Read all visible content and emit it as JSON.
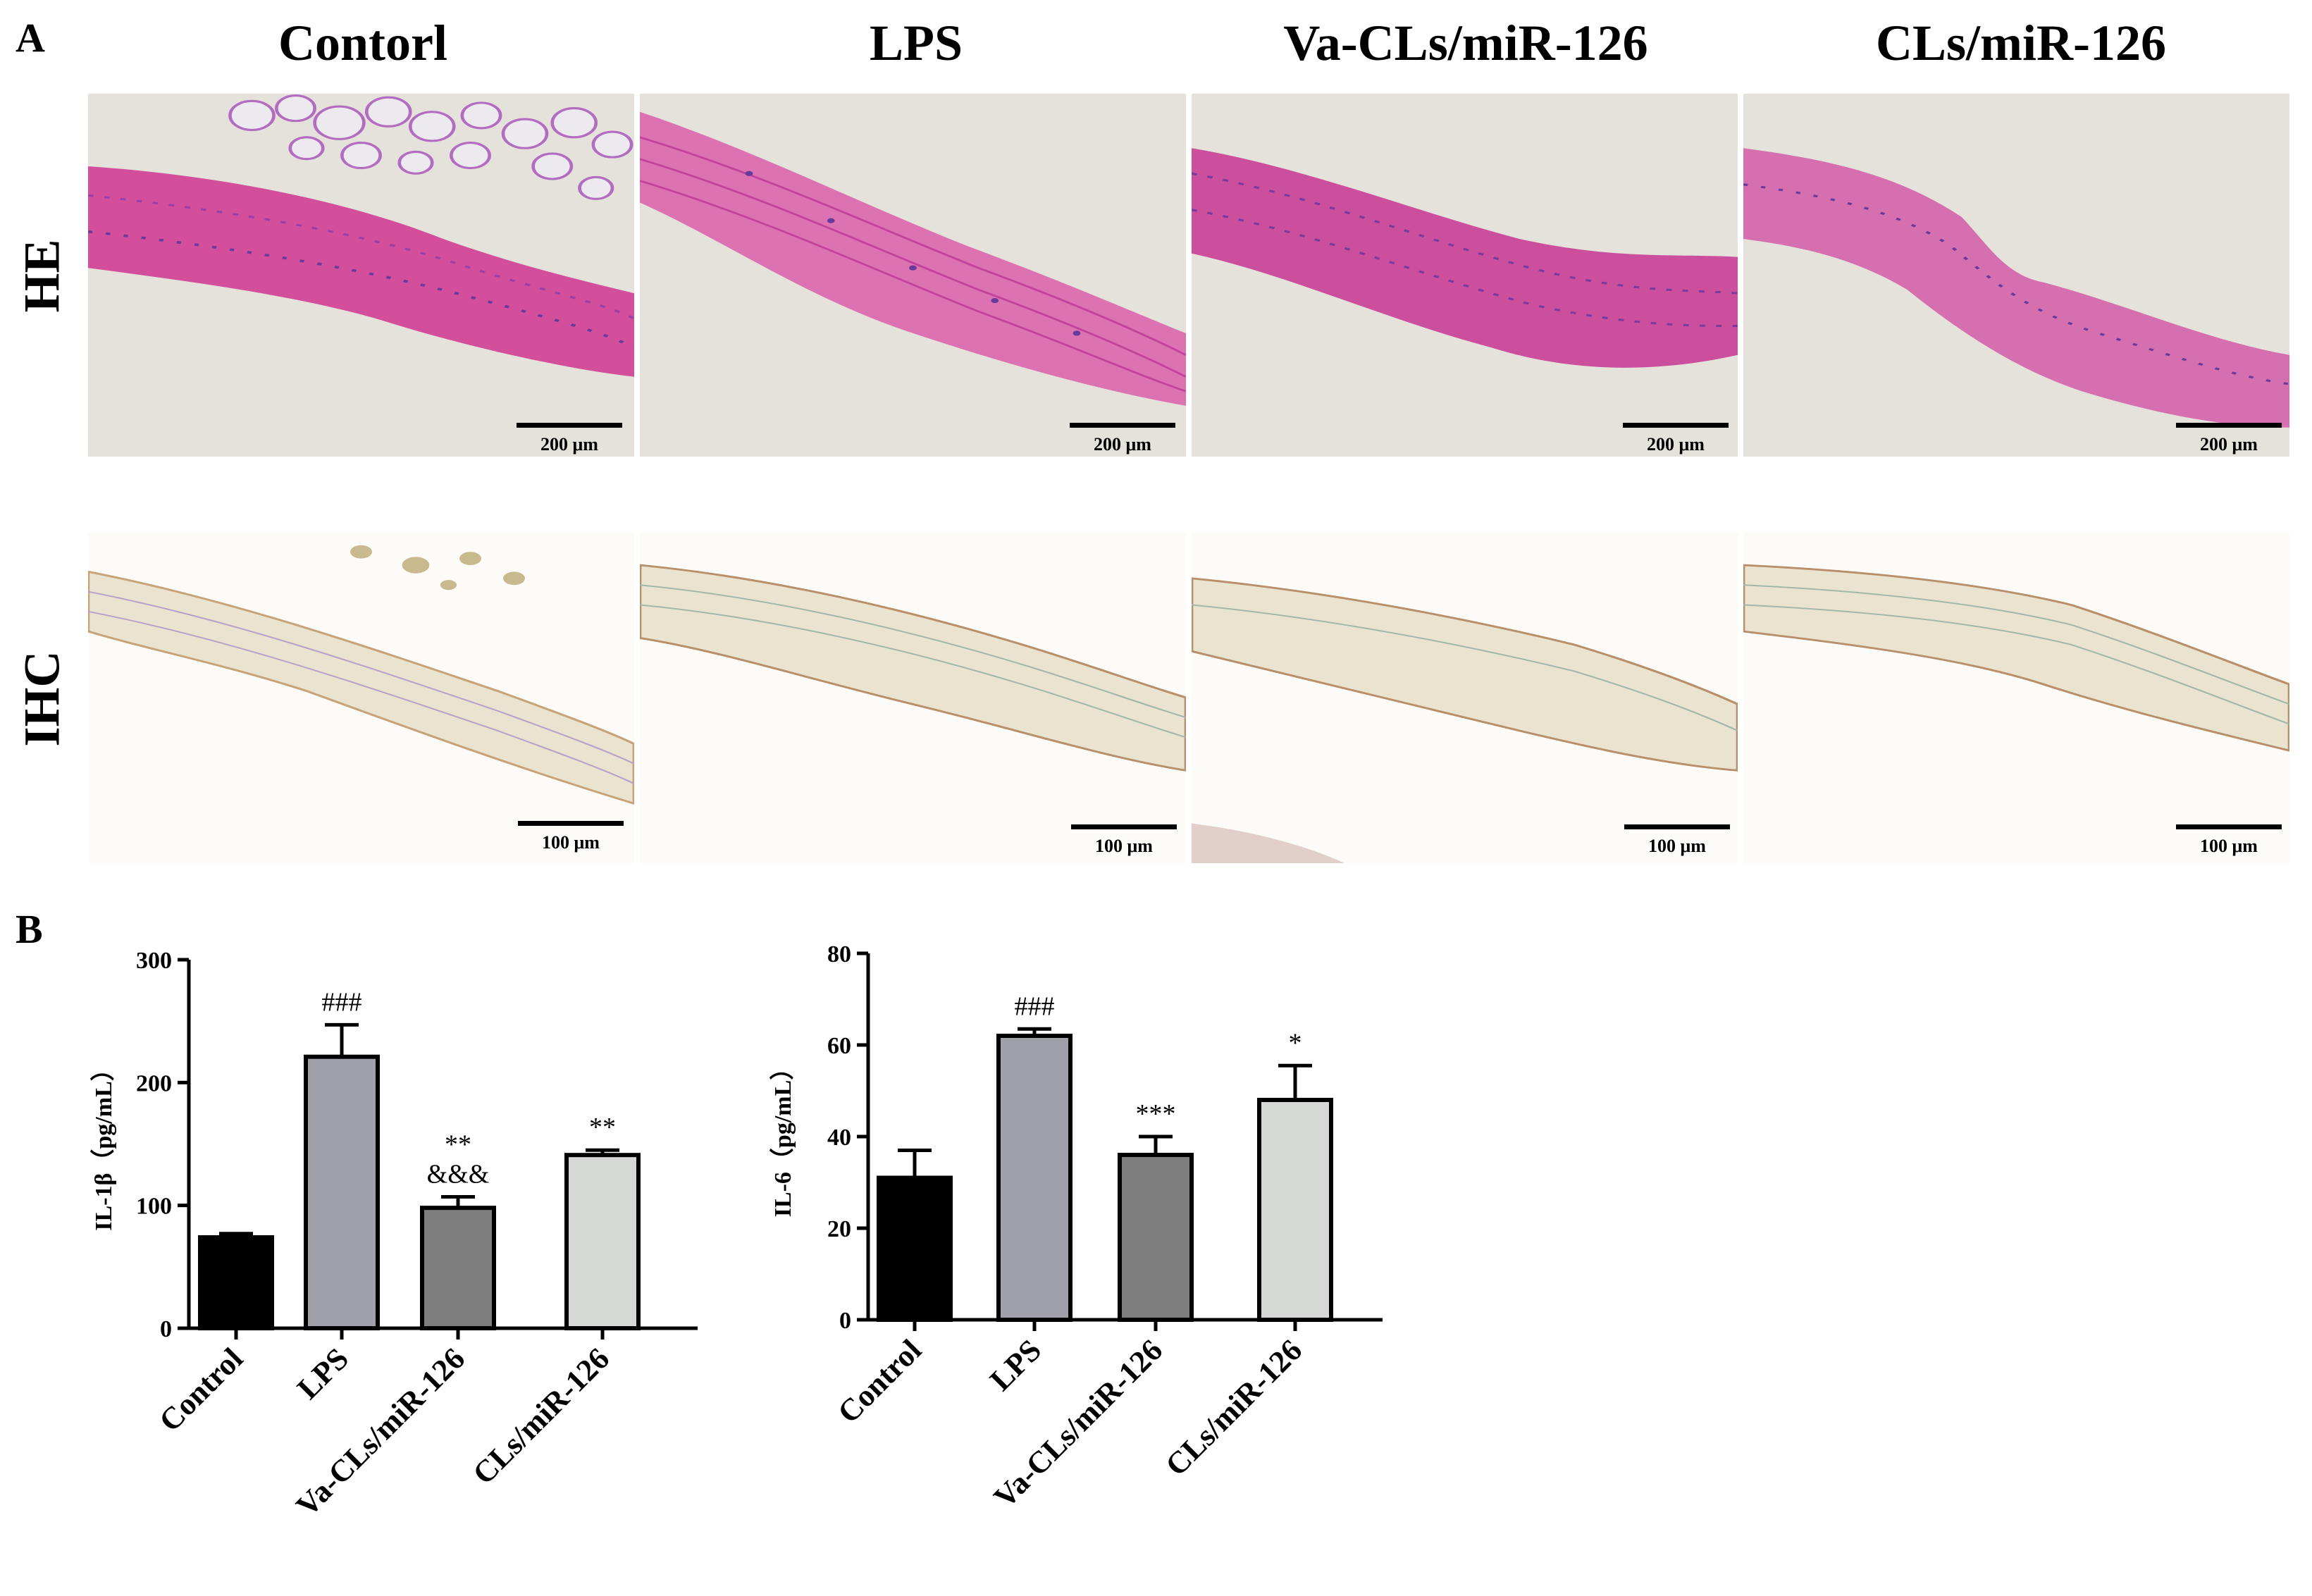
{
  "panels": {
    "a_label": "A",
    "b_label": "B"
  },
  "columns": [
    "Contorl",
    "LPS",
    "Va-CLs/miR-126",
    "CLs/miR-126"
  ],
  "rows": [
    "HE",
    "IHC"
  ],
  "scalebars": {
    "he": "200 μm",
    "ihc": "100 μm"
  },
  "colors": {
    "he_background": "#e4e2da",
    "he_tissue": "#d34f9c",
    "he_nuclei": "#6a3a9b",
    "ihc_background": "#fcfbf7",
    "ihc_tissue": "#eae3cf",
    "control_bar": "#000000",
    "lps_bar": "#a0a0a8",
    "va_bar": "#7e7e7e",
    "cls_bar": "#d6d8d6"
  },
  "chart_data": [
    {
      "type": "bar",
      "categories": [
        "Control",
        "LPS",
        "Va-CLs/miR-126",
        "CLs/miR-126"
      ],
      "values": [
        74,
        221,
        98,
        141
      ],
      "errors": [
        3,
        26,
        9,
        4
      ],
      "annotations": [
        "",
        "###",
        "**\n&&&",
        "**"
      ],
      "ylabel": "IL-1β（pg/mL）",
      "ylim": [
        0,
        300
      ],
      "yticks": [
        "0",
        "100",
        "200",
        "300"
      ],
      "grid": false
    },
    {
      "type": "bar",
      "categories": [
        "Control",
        "LPS",
        "Va-CLs/miR-126",
        "CLs/miR-126"
      ],
      "values": [
        31,
        62,
        36,
        48
      ],
      "errors": [
        6,
        1.5,
        4,
        7.5
      ],
      "annotations": [
        "",
        "###",
        "***",
        "*"
      ],
      "ylabel": "IL-6（pg/mL）",
      "ylim": [
        0,
        80
      ],
      "yticks": [
        "0",
        "20",
        "40",
        "60",
        "80"
      ],
      "grid": false
    }
  ]
}
